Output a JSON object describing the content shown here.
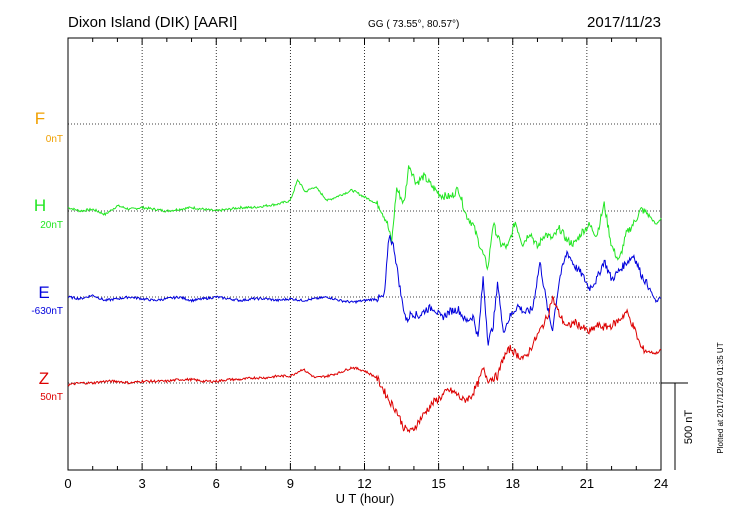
{
  "header": {
    "station": "Dixon Island (DIK)  [AARI]",
    "coords": "GG ( 73.55°,  80.57°)",
    "date": "2017/11/23"
  },
  "footer_note": "Plotted at 2017/12/24 01:35 UT",
  "scale_bar_label": "500 nT",
  "colors": {
    "F": "#f0a000",
    "H": "#22e622",
    "E": "#0000dd",
    "Z": "#dd0000",
    "axis": "#000000",
    "grid": "#000000"
  },
  "chart_data": {
    "type": "line",
    "title": "Dixon Island (DIK)  [AARI]",
    "xlabel": "U T (hour)",
    "xlim": [
      0,
      24
    ],
    "xticks": [
      "0",
      "3",
      "6",
      "9",
      "12",
      "15",
      "18",
      "21",
      "24"
    ],
    "grid": true,
    "scale_bar_nT": 500,
    "series": [
      {
        "name": "F",
        "offset_label": "0nT",
        "color": "#f0a000",
        "x": [],
        "y": []
      },
      {
        "name": "H",
        "offset_label": "20nT",
        "color": "#22e622",
        "x": [
          0,
          0.5,
          1,
          1.5,
          2,
          2.5,
          3,
          3.5,
          4,
          4.5,
          5,
          5.5,
          6,
          6.5,
          7,
          7.5,
          8,
          8.5,
          9,
          9.3,
          9.6,
          10,
          10.5,
          11,
          11.5,
          12,
          12.3,
          12.6,
          12.9,
          13.1,
          13.3,
          13.6,
          13.8,
          14.1,
          14.4,
          14.8,
          15.1,
          15.5,
          15.8,
          16.1,
          16.4,
          16.6,
          16.8,
          17,
          17.2,
          17.5,
          17.8,
          18.1,
          18.4,
          18.7,
          19,
          19.3,
          19.6,
          19.9,
          20.2,
          20.5,
          20.8,
          21.1,
          21.4,
          21.7,
          22,
          22.3,
          22.6,
          22.9,
          23.2,
          23.5,
          23.8,
          24
        ],
        "y": [
          20,
          0,
          10,
          -20,
          30,
          10,
          20,
          10,
          0,
          10,
          20,
          10,
          0,
          10,
          20,
          20,
          30,
          40,
          60,
          180,
          110,
          140,
          60,
          90,
          120,
          80,
          60,
          30,
          -60,
          -180,
          130,
          40,
          270,
          160,
          200,
          130,
          90,
          80,
          130,
          -20,
          -80,
          -170,
          -250,
          -330,
          -70,
          -190,
          -210,
          -60,
          -190,
          -120,
          -210,
          -130,
          -160,
          -100,
          -170,
          -190,
          -120,
          -80,
          -140,
          40,
          -200,
          -290,
          -130,
          -70,
          10,
          -20,
          -80,
          -40
        ]
      },
      {
        "name": "E",
        "offset_label": "-630nT",
        "color": "#0000dd",
        "x": [
          0,
          0.5,
          1,
          1.5,
          2,
          2.5,
          3,
          3.5,
          4,
          4.5,
          5,
          5.5,
          6,
          6.5,
          7,
          7.5,
          8,
          8.5,
          9,
          9.5,
          10,
          10.5,
          11,
          11.5,
          12,
          12.5,
          12.8,
          13,
          13.2,
          13.5,
          13.7,
          13.9,
          14.2,
          14.5,
          14.8,
          15.1,
          15.5,
          15.8,
          16.1,
          16.4,
          16.6,
          16.8,
          17,
          17.2,
          17.4,
          17.6,
          17.9,
          18.2,
          18.5,
          18.8,
          19.1,
          19.4,
          19.6,
          19.9,
          20.2,
          20.5,
          20.8,
          21.1,
          21.4,
          21.7,
          22,
          22.3,
          22.6,
          22.9,
          23.2,
          23.5,
          23.8,
          24
        ],
        "y": [
          0,
          -10,
          10,
          -20,
          -10,
          0,
          -10,
          -20,
          -10,
          0,
          -20,
          -10,
          0,
          -10,
          -20,
          -10,
          -10,
          -20,
          -10,
          -20,
          -10,
          0,
          -20,
          -30,
          -20,
          -10,
          0,
          360,
          280,
          -10,
          -140,
          -90,
          -110,
          -70,
          -60,
          -120,
          -80,
          -70,
          -140,
          -110,
          -240,
          110,
          -260,
          -170,
          90,
          -200,
          -110,
          -50,
          -90,
          -70,
          200,
          -60,
          -190,
          110,
          260,
          180,
          130,
          50,
          100,
          210,
          100,
          150,
          200,
          240,
          130,
          60,
          -30,
          0
        ]
      },
      {
        "name": "Z",
        "offset_label": "50nT",
        "color": "#dd0000",
        "x": [
          0,
          0.5,
          1,
          1.5,
          2,
          2.5,
          3,
          3.5,
          4,
          4.5,
          5,
          5.5,
          6,
          6.5,
          7,
          7.5,
          8,
          8.5,
          9,
          9.5,
          10,
          10.5,
          11,
          11.5,
          12,
          12.5,
          13,
          13.3,
          13.6,
          13.9,
          14.2,
          14.5,
          14.8,
          15.1,
          15.4,
          15.7,
          16,
          16.3,
          16.6,
          16.8,
          17,
          17.2,
          17.4,
          17.6,
          17.9,
          18.2,
          18.5,
          18.8,
          19.1,
          19.4,
          19.6,
          19.9,
          20.2,
          20.5,
          20.8,
          21.1,
          21.4,
          21.7,
          22,
          22.3,
          22.6,
          22.9,
          23.2,
          23.5,
          23.8,
          24
        ],
        "y": [
          -10,
          0,
          0,
          10,
          10,
          0,
          10,
          10,
          10,
          20,
          20,
          10,
          10,
          20,
          20,
          30,
          30,
          40,
          40,
          80,
          30,
          40,
          60,
          90,
          70,
          30,
          -100,
          -160,
          -260,
          -280,
          -220,
          -160,
          -110,
          -80,
          -40,
          -60,
          -100,
          -80,
          0,
          80,
          20,
          30,
          40,
          140,
          200,
          160,
          140,
          220,
          300,
          380,
          490,
          390,
          320,
          350,
          320,
          290,
          330,
          320,
          330,
          360,
          410,
          320,
          200,
          180,
          170,
          190
        ]
      }
    ]
  }
}
